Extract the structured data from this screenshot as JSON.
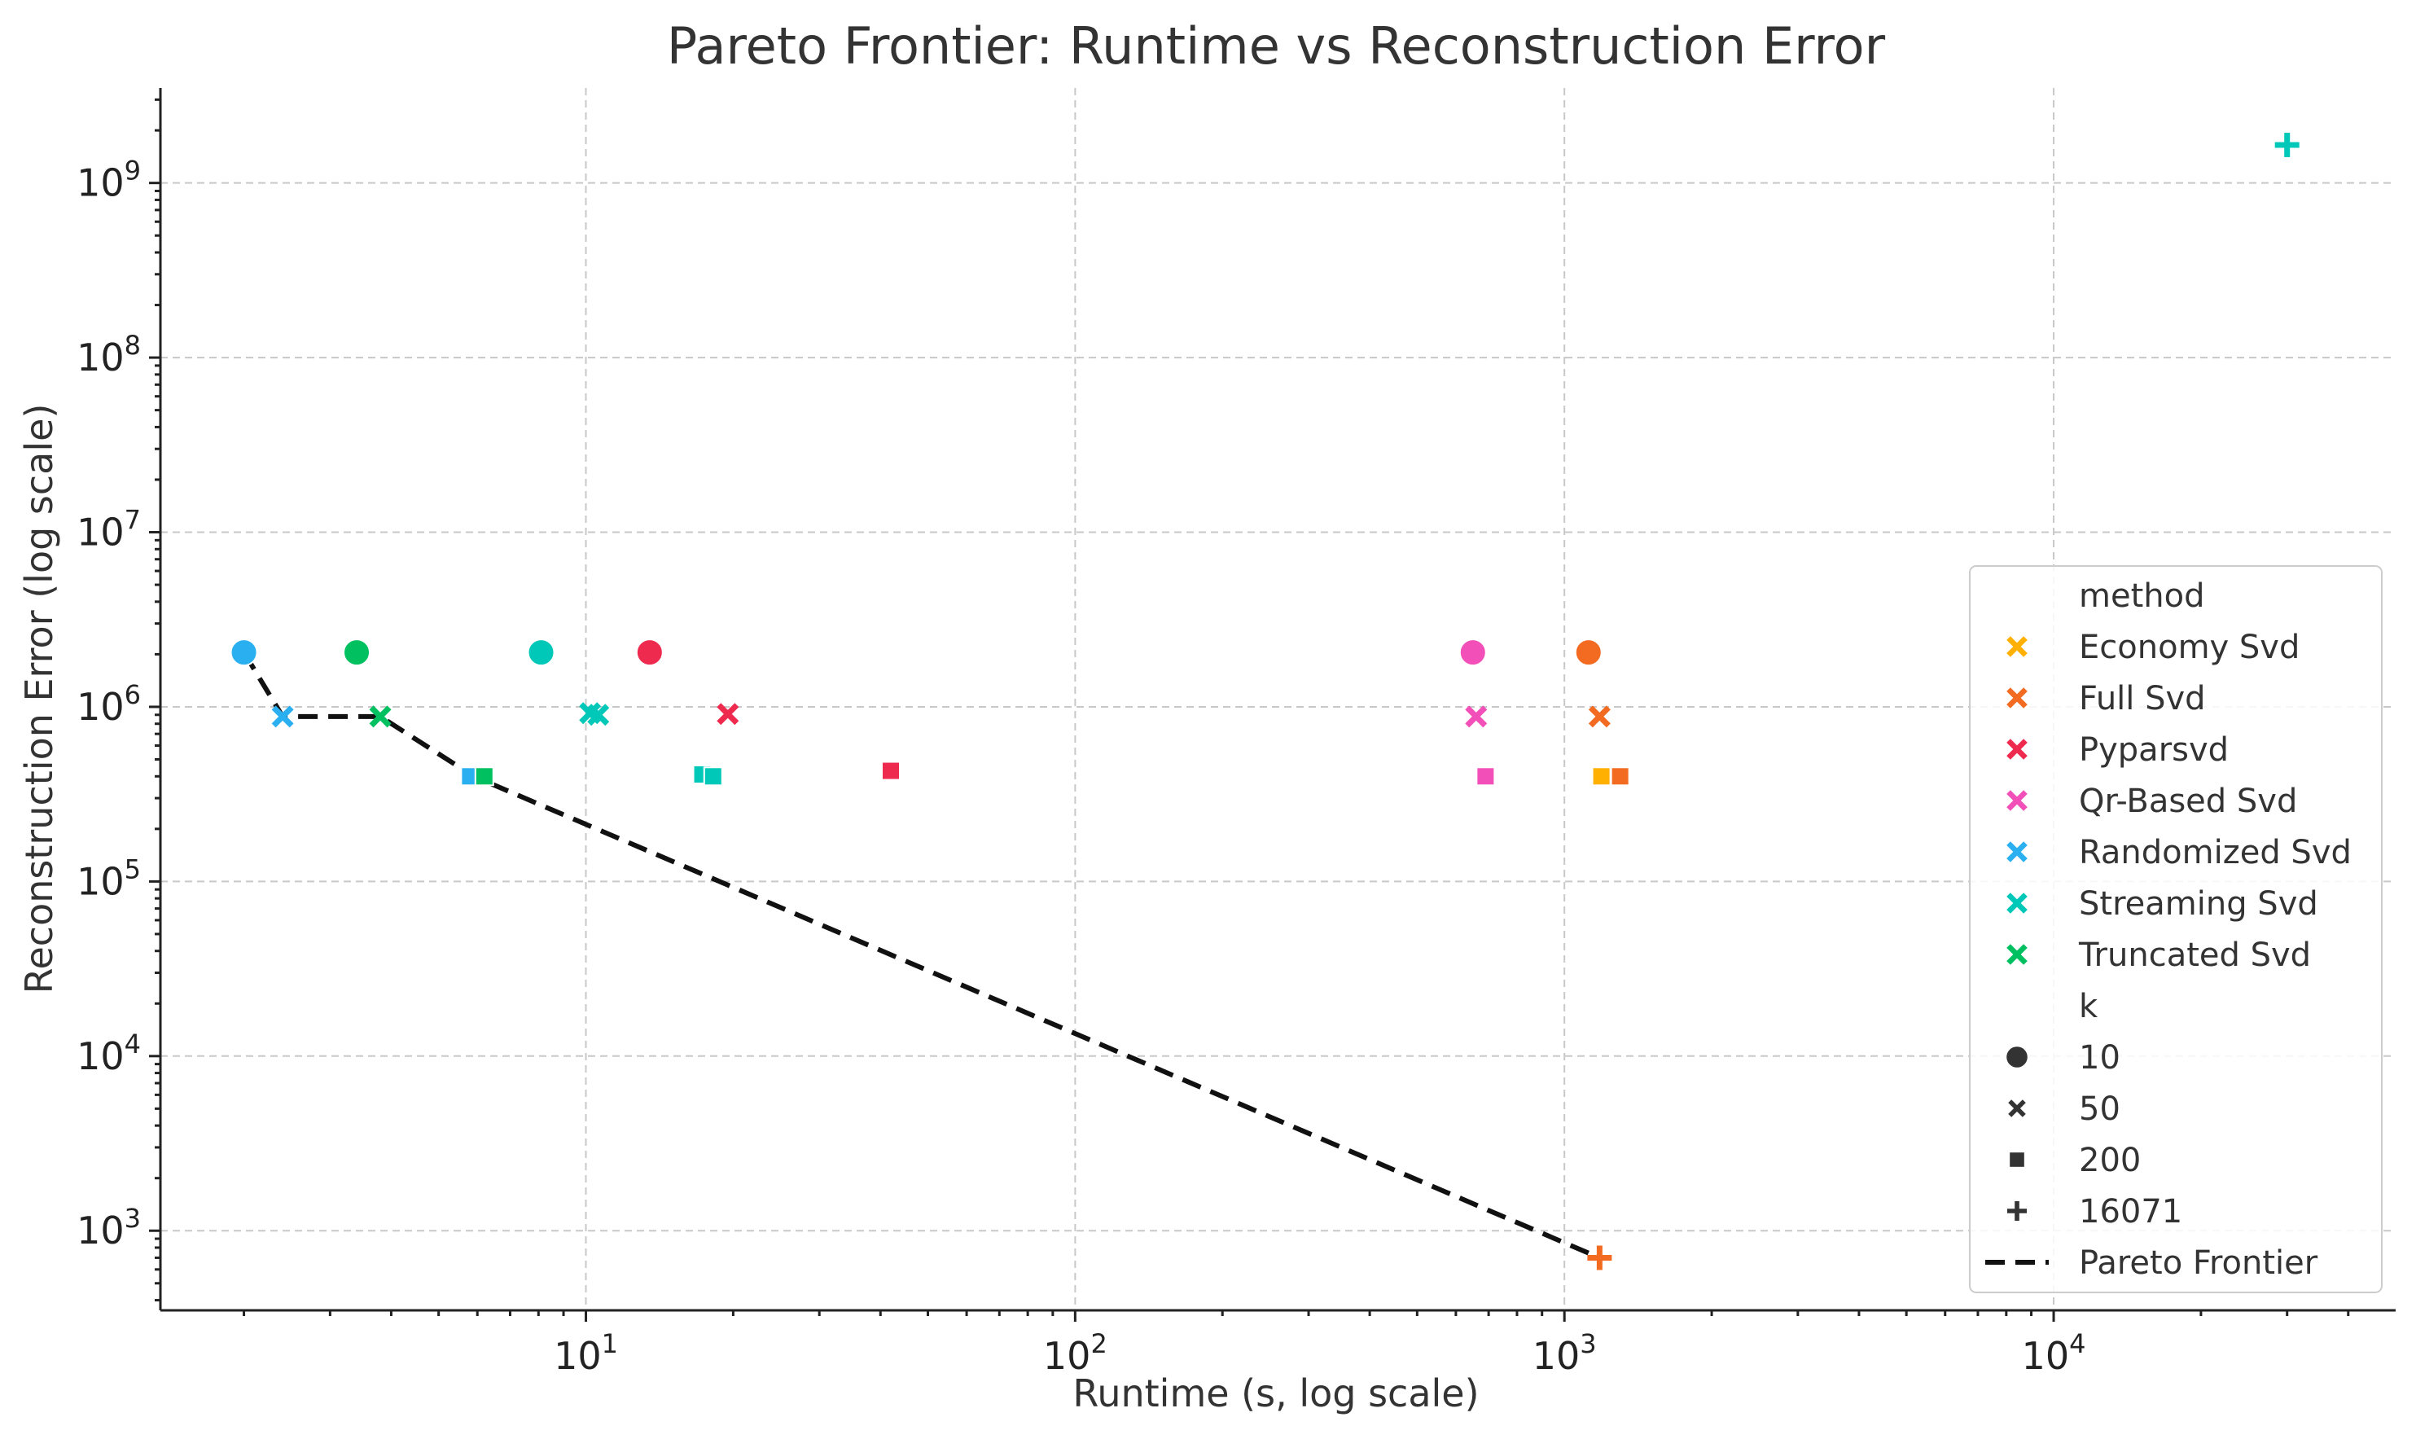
{
  "chart_data": {
    "type": "scatter",
    "title": "Pareto Frontier: Runtime vs Reconstruction Error",
    "xlabel": "Runtime (s, log scale)",
    "ylabel": "Reconstruction Error (log scale)",
    "xscale": "log",
    "yscale": "log",
    "xlim": [
      1.35,
      50000
    ],
    "ylim": [
      350,
      3500000000
    ],
    "x_ticks": [
      {
        "value": 10,
        "base": "10",
        "exp": "1"
      },
      {
        "value": 100,
        "base": "10",
        "exp": "2"
      },
      {
        "value": 1000,
        "base": "10",
        "exp": "3"
      },
      {
        "value": 10000,
        "base": "10",
        "exp": "4"
      }
    ],
    "y_ticks": [
      {
        "value": 1000,
        "base": "10",
        "exp": "3"
      },
      {
        "value": 10000,
        "base": "10",
        "exp": "4"
      },
      {
        "value": 100000,
        "base": "10",
        "exp": "5"
      },
      {
        "value": 1000000,
        "base": "10",
        "exp": "6"
      },
      {
        "value": 10000000,
        "base": "10",
        "exp": "7"
      },
      {
        "value": 100000000,
        "base": "10",
        "exp": "8"
      },
      {
        "value": 1000000000,
        "base": "10",
        "exp": "9"
      }
    ],
    "grid": true,
    "legend_position": "right",
    "legend": {
      "hue_title": "method",
      "style_title": "k",
      "frontier_label": "Pareto Frontier"
    },
    "methods": [
      {
        "name": "Economy Svd",
        "color": "#FFB000"
      },
      {
        "name": "Full Svd",
        "color": "#F26B21"
      },
      {
        "name": "Pyparsvd",
        "color": "#EE2A4F"
      },
      {
        "name": "Qr-Based Svd",
        "color": "#F250B8"
      },
      {
        "name": "Randomized Svd",
        "color": "#2AB0F0"
      },
      {
        "name": "Streaming Svd",
        "color": "#00C8B8"
      },
      {
        "name": "Truncated Svd",
        "color": "#00C060"
      }
    ],
    "k_values": [
      {
        "label": "10",
        "marker": "circle"
      },
      {
        "label": "50",
        "marker": "x"
      },
      {
        "label": "200",
        "marker": "square"
      },
      {
        "label": "16071",
        "marker": "plus"
      }
    ],
    "points": [
      {
        "method": "Randomized Svd",
        "k": "10",
        "x": 2.0,
        "y": 2050000
      },
      {
        "method": "Truncated Svd",
        "k": "10",
        "x": 3.4,
        "y": 2050000
      },
      {
        "method": "Streaming Svd",
        "k": "10",
        "x": 8.1,
        "y": 2050000
      },
      {
        "method": "Pyparsvd",
        "k": "10",
        "x": 13.5,
        "y": 2050000
      },
      {
        "method": "Qr-Based Svd",
        "k": "10",
        "x": 650,
        "y": 2050000
      },
      {
        "method": "Full Svd",
        "k": "10",
        "x": 1120,
        "y": 2050000
      },
      {
        "method": "Randomized Svd",
        "k": "50",
        "x": 2.4,
        "y": 880000
      },
      {
        "method": "Truncated Svd",
        "k": "50",
        "x": 3.8,
        "y": 880000
      },
      {
        "method": "Streaming Svd",
        "k": "50",
        "x": 10.2,
        "y": 920000
      },
      {
        "method": "Streaming Svd",
        "k": "50",
        "x": 10.6,
        "y": 900000
      },
      {
        "method": "Pyparsvd",
        "k": "50",
        "x": 19.5,
        "y": 910000
      },
      {
        "method": "Qr-Based Svd",
        "k": "50",
        "x": 660,
        "y": 880000
      },
      {
        "method": "Full Svd",
        "k": "50",
        "x": 1180,
        "y": 880000
      },
      {
        "method": "Randomized Svd",
        "k": "200",
        "x": 5.8,
        "y": 400000
      },
      {
        "method": "Truncated Svd",
        "k": "200",
        "x": 6.2,
        "y": 400000
      },
      {
        "method": "Streaming Svd",
        "k": "200",
        "x": 17.3,
        "y": 410000
      },
      {
        "method": "Streaming Svd",
        "k": "200",
        "x": 18.2,
        "y": 400000
      },
      {
        "method": "Pyparsvd",
        "k": "200",
        "x": 42,
        "y": 430000
      },
      {
        "method": "Qr-Based Svd",
        "k": "200",
        "x": 690,
        "y": 400000
      },
      {
        "method": "Economy Svd",
        "k": "200",
        "x": 1190,
        "y": 400000
      },
      {
        "method": "Full Svd",
        "k": "200",
        "x": 1300,
        "y": 400000
      },
      {
        "method": "Full Svd",
        "k": "16071",
        "x": 1180,
        "y": 700
      },
      {
        "method": "Streaming Svd",
        "k": "16071",
        "x": 30000,
        "y": 1650000000
      }
    ],
    "pareto_frontier": [
      {
        "x": 2.0,
        "y": 2050000
      },
      {
        "x": 2.4,
        "y": 880000
      },
      {
        "x": 3.8,
        "y": 880000
      },
      {
        "x": 5.9,
        "y": 400000
      },
      {
        "x": 1180,
        "y": 700
      }
    ]
  }
}
